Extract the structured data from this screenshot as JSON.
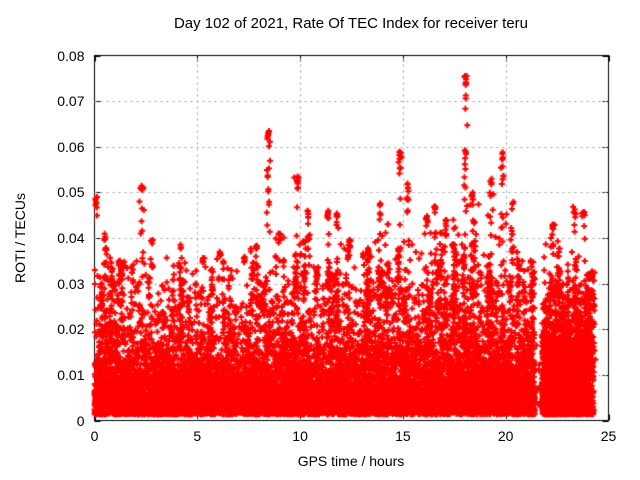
{
  "chart_data": {
    "type": "scatter",
    "title": "Day 102 of 2021, Rate Of TEC Index for receiver teru",
    "xlabel": "GPS time / hours",
    "ylabel": "ROTI / TECUs",
    "xlim": [
      0,
      25
    ],
    "ylim": [
      0,
      0.08
    ],
    "xticks": [
      [
        0,
        "0"
      ],
      [
        5,
        "5"
      ],
      [
        10,
        "10"
      ],
      [
        15,
        "15"
      ],
      [
        20,
        "20"
      ],
      [
        25,
        "25"
      ]
    ],
    "yticks": [
      [
        0,
        "0"
      ],
      [
        0.01,
        "0.01"
      ],
      [
        0.02,
        "0.02"
      ],
      [
        0.03,
        "0.03"
      ],
      [
        0.04,
        "0.04"
      ],
      [
        0.05,
        "0.05"
      ],
      [
        0.06,
        "0.06"
      ],
      [
        0.07,
        "0.07"
      ],
      [
        0.08,
        "0.08"
      ]
    ],
    "grid": true,
    "legend": "none",
    "colors": {
      "marker": "#ff0000",
      "grid": "#9e9e9e",
      "axis": "#000000",
      "background": "#ffffff",
      "text": "#000000"
    },
    "marker": {
      "shape": "plus",
      "size": 7,
      "stroke": 2
    },
    "data_model": {
      "seed": 1337,
      "n_background": 13000,
      "t_range": [
        0,
        24.28
      ],
      "y_floor": 0.0013,
      "gap": {
        "t0": 21.42,
        "t1": 21.76,
        "keep_fraction": 0.06
      },
      "dense_patch": {
        "t0": 21.78,
        "t1": 24.15,
        "extra": 1800,
        "mean": 0.008
      },
      "band_mean": [
        [
          0,
          0.0075
        ],
        [
          2,
          0.0068
        ],
        [
          4,
          0.0062
        ],
        [
          6,
          0.0065
        ],
        [
          8,
          0.0072
        ],
        [
          10,
          0.0075
        ],
        [
          12,
          0.0072
        ],
        [
          14,
          0.0075
        ],
        [
          16,
          0.0085
        ],
        [
          18,
          0.009
        ],
        [
          20,
          0.0088
        ],
        [
          21.4,
          0.0075
        ],
        [
          22,
          0.0085
        ],
        [
          23,
          0.0082
        ],
        [
          24.28,
          0.0075
        ]
      ],
      "band_cap": [
        [
          0,
          0.043
        ],
        [
          1,
          0.034
        ],
        [
          2,
          0.038
        ],
        [
          3,
          0.036
        ],
        [
          4,
          0.037
        ],
        [
          5,
          0.034
        ],
        [
          6,
          0.036
        ],
        [
          7,
          0.036
        ],
        [
          8,
          0.04
        ],
        [
          9,
          0.04
        ],
        [
          10,
          0.042
        ],
        [
          11,
          0.043
        ],
        [
          12,
          0.04
        ],
        [
          13,
          0.038
        ],
        [
          14,
          0.043
        ],
        [
          15,
          0.044
        ],
        [
          16,
          0.042
        ],
        [
          17,
          0.044
        ],
        [
          18,
          0.048
        ],
        [
          19,
          0.048
        ],
        [
          20,
          0.046
        ],
        [
          21,
          0.036
        ],
        [
          22,
          0.04
        ],
        [
          23,
          0.04
        ],
        [
          24.28,
          0.034
        ]
      ],
      "bursts": {
        "count": 115,
        "points_min": 4,
        "points_max": 16,
        "t_sigma": 0.035,
        "peak_lo": 0.6,
        "peak_hi": 1.0
      },
      "spikes": [
        [
          0.07,
          0.049,
          8
        ],
        [
          0.5,
          0.041,
          7
        ],
        [
          1.2,
          0.035,
          6
        ],
        [
          2.3,
          0.0515,
          16
        ],
        [
          2.8,
          0.04,
          7
        ],
        [
          4.2,
          0.039,
          6
        ],
        [
          5.3,
          0.036,
          5
        ],
        [
          6.1,
          0.037,
          6
        ],
        [
          7.3,
          0.036,
          5
        ],
        [
          8.45,
          0.0635,
          18
        ],
        [
          9.0,
          0.041,
          7
        ],
        [
          9.85,
          0.0535,
          13
        ],
        [
          10.4,
          0.046,
          10
        ],
        [
          11.35,
          0.046,
          11
        ],
        [
          11.8,
          0.046,
          9
        ],
        [
          12.4,
          0.04,
          7
        ],
        [
          13.1,
          0.037,
          6
        ],
        [
          13.9,
          0.048,
          11
        ],
        [
          14.85,
          0.059,
          15
        ],
        [
          15.25,
          0.052,
          11
        ],
        [
          16.15,
          0.0455,
          8
        ],
        [
          16.55,
          0.047,
          9
        ],
        [
          17.1,
          0.044,
          8
        ],
        [
          18.05,
          0.0755,
          24
        ],
        [
          18.4,
          0.05,
          9
        ],
        [
          19.3,
          0.053,
          11
        ],
        [
          19.85,
          0.059,
          15
        ],
        [
          20.3,
          0.048,
          11
        ],
        [
          22.3,
          0.043,
          9
        ],
        [
          23.35,
          0.047,
          11
        ],
        [
          23.8,
          0.046,
          9
        ]
      ]
    }
  }
}
